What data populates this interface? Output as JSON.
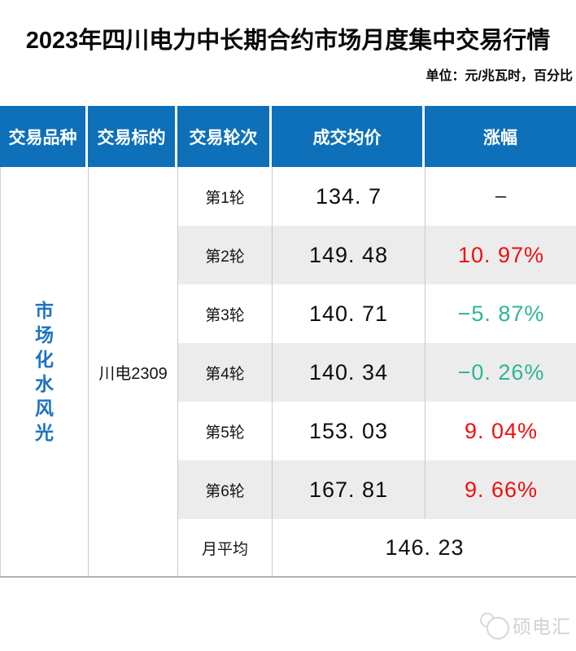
{
  "page": {
    "title": "2023年四川电力中长期合约市场月度集中交易行情",
    "unit_note": "单位：元/兆瓦时，百分比"
  },
  "table": {
    "headers": [
      "交易品种",
      "交易标的",
      "交易轮次",
      "成交均价",
      "涨幅"
    ],
    "product": "市场化水风光",
    "target": "川电2309",
    "rows": [
      {
        "round": "第1轮",
        "avg_price": "134. 7",
        "change": "–",
        "change_color": "black"
      },
      {
        "round": "第2轮",
        "avg_price": "149. 48",
        "change": "10. 97%",
        "change_color": "red"
      },
      {
        "round": "第3轮",
        "avg_price": "140. 71",
        "change": "−5. 87%",
        "change_color": "green"
      },
      {
        "round": "第4轮",
        "avg_price": "140. 34",
        "change": "−0. 26%",
        "change_color": "green"
      },
      {
        "round": "第5轮",
        "avg_price": "153. 03",
        "change": "9. 04%",
        "change_color": "red"
      },
      {
        "round": "第6轮",
        "avg_price": "167. 81",
        "change": "9. 66%",
        "change_color": "red"
      }
    ],
    "summary": {
      "label": "月平均",
      "value": "146. 23"
    }
  },
  "chart_data": {
    "type": "table",
    "title": "2023年四川电力中长期合约市场月度集中交易行情",
    "unit_note": "单位：元/兆瓦时，百分比",
    "columns": [
      "交易品种",
      "交易标的",
      "交易轮次",
      "成交均价",
      "涨幅"
    ],
    "product": "市场化水风光",
    "target": "川电2309",
    "rounds": [
      "第1轮",
      "第2轮",
      "第3轮",
      "第4轮",
      "第5轮",
      "第6轮"
    ],
    "avg_prices": [
      134.7,
      149.48,
      140.71,
      140.34,
      153.03,
      167.81
    ],
    "change_pct": [
      null,
      10.97,
      -5.87,
      -0.26,
      9.04,
      9.66
    ],
    "monthly_average": 146.23
  },
  "colors": {
    "header_bg": "#0e70b9",
    "product_blue": "#1d72c2",
    "up_red": "#f20d0d",
    "down_green": "#2ab795",
    "stripe_gray": "#ececec"
  },
  "watermark": {
    "text": "硕电汇",
    "logo": "shuo-dian-hui-circles-logo"
  }
}
